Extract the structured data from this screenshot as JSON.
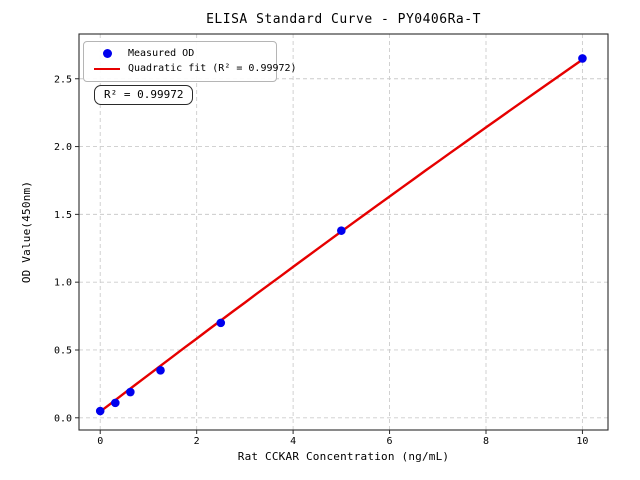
{
  "chart_data": {
    "type": "scatter",
    "title": "ELISA Standard Curve - PY0406Ra-T",
    "xlabel": "Rat CCKAR Concentration (ng/mL)",
    "ylabel": "OD Value(450nm)",
    "xlim": [
      -0.44,
      10.53
    ],
    "ylim": [
      -0.09,
      2.83
    ],
    "x_ticks": [
      0,
      2,
      4,
      6,
      8,
      10
    ],
    "y_ticks": [
      0.0,
      0.5,
      1.0,
      1.5,
      2.0,
      2.5
    ],
    "grid": "dashed",
    "legend_position": "upper-left",
    "series": [
      {
        "name": "Measured OD",
        "type": "scatter",
        "color": "#0000ee",
        "x": [
          0,
          0.313,
          0.625,
          1.25,
          2.5,
          5,
          10
        ],
        "y": [
          0.05,
          0.11,
          0.19,
          0.35,
          0.7,
          1.38,
          2.65
        ]
      },
      {
        "name": "Quadratic fit (R² = 0.99972)",
        "type": "line",
        "color": "#e60000",
        "fit": "quadratic",
        "r_squared": 0.99972,
        "coefficients": {
          "a": -0.0012,
          "b": 0.2715,
          "c": 0.046
        },
        "x_range": [
          0,
          10
        ]
      }
    ]
  },
  "annotation": {
    "text": "R² = 0.99972"
  },
  "style": {
    "marker_color": "#0000ee",
    "fit_line_color": "#e60000",
    "grid_color": "#cccccc",
    "axis_color": "#2b2b2b",
    "text_color": "#000000",
    "background": "#ffffff"
  }
}
